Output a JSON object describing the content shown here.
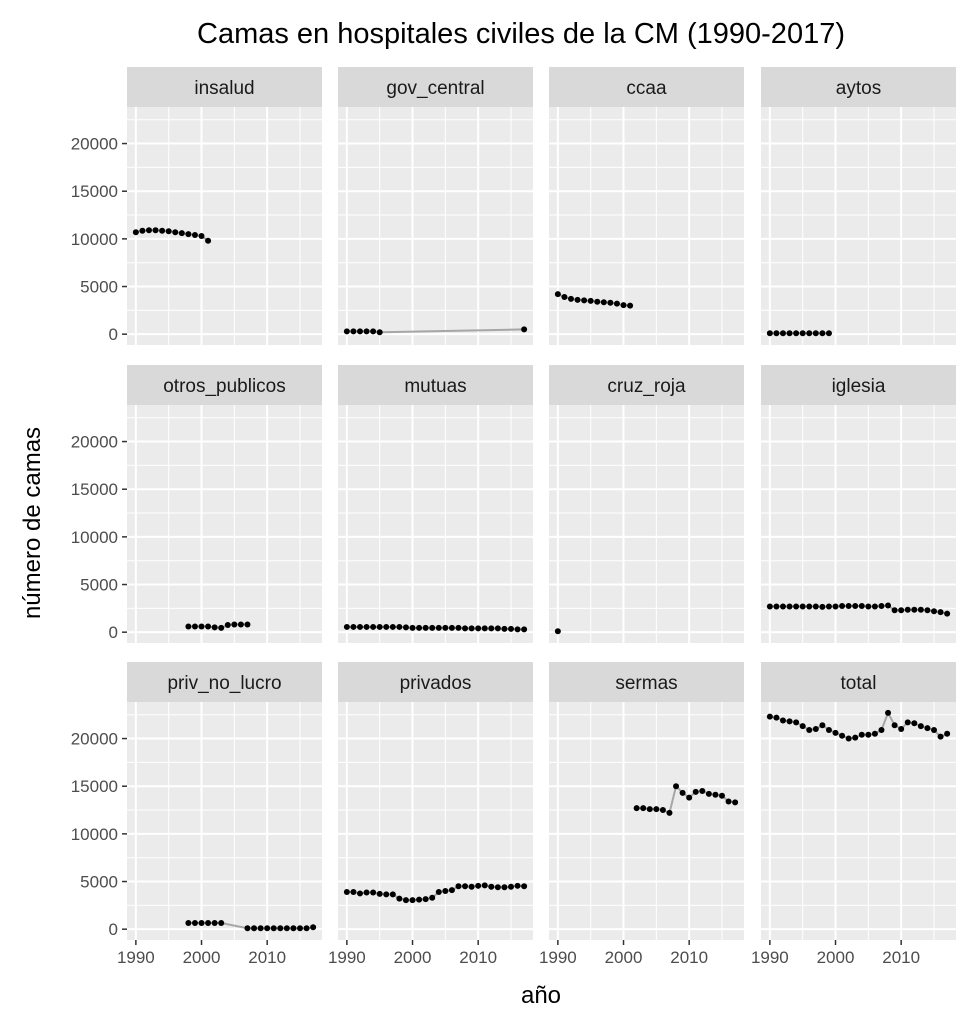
{
  "chart_data": {
    "type": "scatter",
    "title": "Camas en hospitales civiles de la CM (1990-2017)",
    "xlabel": "año",
    "ylabel": "número de camas",
    "xlim": [
      1990,
      2017
    ],
    "ylim": [
      0,
      22700
    ],
    "x_ticks": [
      1990,
      2000,
      2010
    ],
    "y_ticks": [
      0,
      5000,
      10000,
      15000,
      20000
    ],
    "x_tick_labels": [
      "1990",
      "2000",
      "2010"
    ],
    "y_tick_labels": [
      "0",
      "5000",
      "10000",
      "15000",
      "20000"
    ],
    "grid": true,
    "facets": [
      {
        "name": "insalud",
        "start": 1990,
        "values": [
          10700,
          10850,
          10900,
          10900,
          10850,
          10800,
          10700,
          10600,
          10500,
          10400,
          10300,
          9800
        ]
      },
      {
        "name": "gov_central",
        "points": [
          [
            1990,
            300
          ],
          [
            1991,
            300
          ],
          [
            1992,
            300
          ],
          [
            1993,
            300
          ],
          [
            1994,
            300
          ],
          [
            1995,
            200
          ],
          [
            2017,
            500
          ]
        ]
      },
      {
        "name": "ccaa",
        "start": 1990,
        "values": [
          4200,
          3900,
          3700,
          3600,
          3550,
          3500,
          3400,
          3350,
          3300,
          3200,
          3050,
          3000
        ]
      },
      {
        "name": "aytos",
        "start": 1990,
        "values": [
          100,
          100,
          100,
          100,
          100,
          100,
          100,
          100,
          100,
          100
        ]
      },
      {
        "name": "otros_publicos",
        "start": 1998,
        "values": [
          600,
          600,
          600,
          600,
          500,
          450,
          750,
          800,
          800,
          800
        ]
      },
      {
        "name": "mutuas",
        "start": 1990,
        "values": [
          550,
          550,
          550,
          550,
          550,
          550,
          550,
          550,
          550,
          500,
          450,
          450,
          450,
          450,
          450,
          450,
          450,
          450,
          400,
          400,
          400,
          400,
          400,
          400,
          350,
          350,
          300,
          300
        ]
      },
      {
        "name": "cruz_roja",
        "start": 1990,
        "values": [
          100
        ]
      },
      {
        "name": "iglesia",
        "start": 1990,
        "values": [
          2700,
          2700,
          2700,
          2700,
          2700,
          2700,
          2700,
          2700,
          2650,
          2700,
          2700,
          2750,
          2750,
          2750,
          2750,
          2700,
          2700,
          2750,
          2800,
          2300,
          2300,
          2350,
          2350,
          2350,
          2300,
          2200,
          2100,
          1950
        ]
      },
      {
        "name": "priv_no_lucro",
        "points": [
          [
            1998,
            650
          ],
          [
            1999,
            650
          ],
          [
            2000,
            650
          ],
          [
            2001,
            650
          ],
          [
            2002,
            650
          ],
          [
            2003,
            650
          ],
          [
            2007,
            100
          ],
          [
            2008,
            100
          ],
          [
            2009,
            100
          ],
          [
            2010,
            100
          ],
          [
            2011,
            100
          ],
          [
            2012,
            100
          ],
          [
            2013,
            100
          ],
          [
            2014,
            100
          ],
          [
            2015,
            100
          ],
          [
            2016,
            100
          ],
          [
            2017,
            200
          ]
        ]
      },
      {
        "name": "privados",
        "start": 1990,
        "values": [
          3900,
          3900,
          3750,
          3850,
          3850,
          3700,
          3650,
          3650,
          3200,
          3050,
          3050,
          3100,
          3150,
          3300,
          3900,
          4000,
          4100,
          4500,
          4500,
          4450,
          4550,
          4600,
          4450,
          4400,
          4400,
          4450,
          4550,
          4500
        ]
      },
      {
        "name": "sermas",
        "start": 2002,
        "values": [
          12700,
          12700,
          12600,
          12600,
          12500,
          12200,
          15000,
          14300,
          13800,
          14400,
          14500,
          14200,
          14100,
          14000,
          13400,
          13300
        ]
      },
      {
        "name": "total",
        "start": 1990,
        "values": [
          22300,
          22200,
          21900,
          21800,
          21700,
          21300,
          20900,
          21000,
          21400,
          20900,
          20600,
          20300,
          20000,
          20100,
          20400,
          20400,
          20500,
          20900,
          22700,
          21400,
          21000,
          21700,
          21600,
          21300,
          21100,
          20900,
          20200,
          20500
        ]
      }
    ]
  },
  "colors": {
    "panel": "#ebebeb",
    "strip": "#d9d9d9",
    "grid": "#ffffff",
    "point": "#000000",
    "line": "#a6a6a6",
    "text": "#4d4d4d"
  }
}
